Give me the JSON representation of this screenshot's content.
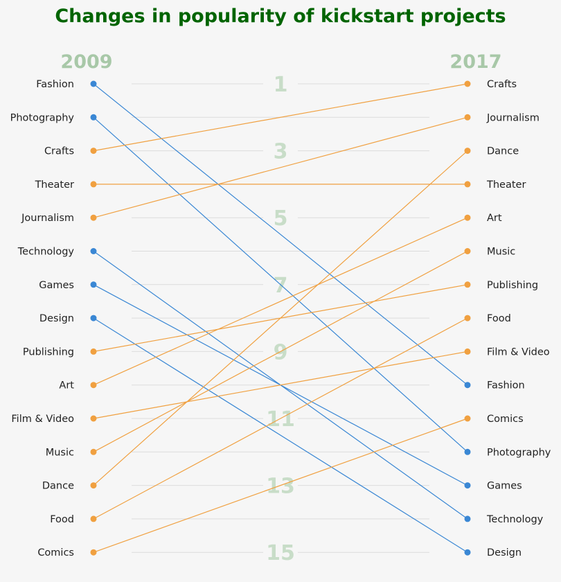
{
  "title": "Changes in popularity of kickstart projects",
  "chart_data": {
    "type": "slope",
    "title": "Changes in popularity of kickstart projects",
    "x": [
      "2009",
      "2017"
    ],
    "rank_labels": [
      "1",
      "3",
      "5",
      "7",
      "9",
      "11",
      "13",
      "15"
    ],
    "rank_ticks": [
      1,
      3,
      5,
      7,
      9,
      11,
      13,
      15
    ],
    "ylim": [
      1,
      15
    ],
    "grid": true,
    "series": [
      {
        "name": "Fashion",
        "values": [
          1,
          10
        ]
      },
      {
        "name": "Photography",
        "values": [
          2,
          12
        ]
      },
      {
        "name": "Crafts",
        "values": [
          3,
          1
        ]
      },
      {
        "name": "Theater",
        "values": [
          4,
          4
        ]
      },
      {
        "name": "Journalism",
        "values": [
          5,
          2
        ]
      },
      {
        "name": "Technology",
        "values": [
          6,
          14
        ]
      },
      {
        "name": "Games",
        "values": [
          7,
          13
        ]
      },
      {
        "name": "Design",
        "values": [
          8,
          15
        ]
      },
      {
        "name": "Publishing",
        "values": [
          9,
          7
        ]
      },
      {
        "name": "Art",
        "values": [
          10,
          5
        ]
      },
      {
        "name": "Film & Video",
        "values": [
          11,
          9
        ]
      },
      {
        "name": "Music",
        "values": [
          12,
          6
        ]
      },
      {
        "name": "Dance",
        "values": [
          13,
          3
        ]
      },
      {
        "name": "Food",
        "values": [
          14,
          8
        ]
      },
      {
        "name": "Comics",
        "values": [
          15,
          11
        ]
      }
    ],
    "colors": {
      "title": "#006400",
      "year": "#a8c8a8",
      "rank_number": "#c8ddc8",
      "declined": "#3a87d4",
      "improved": "#f0a040",
      "grid": "#dcdcdc",
      "label": "#222222"
    }
  }
}
